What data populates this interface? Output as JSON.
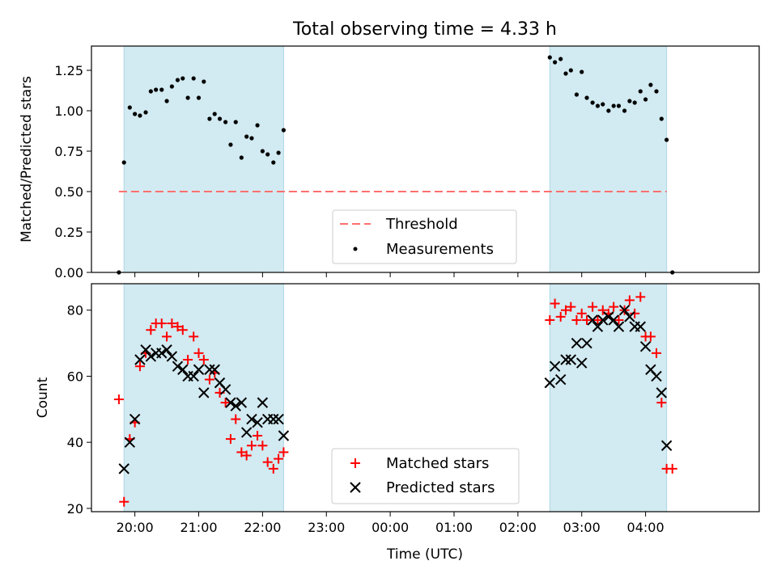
{
  "figure": {
    "title": "Total observing time = 4.33 h"
  },
  "chart_data": [
    {
      "type": "scatter",
      "title": "Total observing time = 4.33 h",
      "xlabel": "",
      "ylabel": "Matched/Predicted stars",
      "xlim": [
        -0.68,
        9.78
      ],
      "ylim": [
        0.0,
        1.4
      ],
      "yticks": [
        0.0,
        0.25,
        0.5,
        0.75,
        1.0,
        1.25
      ],
      "ytick_labels": [
        "0.00",
        "0.25",
        "0.50",
        "0.75",
        "1.00",
        "1.25"
      ],
      "xticks": [
        0,
        1,
        2,
        3,
        4,
        5,
        6,
        7,
        8
      ],
      "xtick_labels": [
        "",
        "",
        "",
        "",
        "",
        "",
        "",
        "",
        ""
      ],
      "shaded_intervals": [
        [
          -0.17,
          2.33
        ],
        [
          6.5,
          8.33
        ]
      ],
      "shade_color": "#add8e6",
      "threshold": {
        "name": "Threshold",
        "y": 0.5,
        "x": [
          -0.25,
          8.33
        ],
        "color": "#ff6f6f",
        "style": "dashed"
      },
      "legend": {
        "position": "lower center",
        "entries": [
          "Threshold",
          "Measurements"
        ]
      },
      "series": [
        {
          "name": "Measurements",
          "marker": "dot",
          "color": "#000000",
          "points": [
            [
              -0.25,
              0.0
            ],
            [
              -0.17,
              0.68
            ],
            [
              -0.08,
              1.02
            ],
            [
              0.0,
              0.98
            ],
            [
              0.08,
              0.97
            ],
            [
              0.17,
              0.99
            ],
            [
              0.25,
              1.12
            ],
            [
              0.33,
              1.13
            ],
            [
              0.42,
              1.13
            ],
            [
              0.5,
              1.06
            ],
            [
              0.58,
              1.15
            ],
            [
              0.67,
              1.19
            ],
            [
              0.75,
              1.2
            ],
            [
              0.83,
              1.08
            ],
            [
              0.92,
              1.2
            ],
            [
              1.0,
              1.08
            ],
            [
              1.08,
              1.18
            ],
            [
              1.17,
              0.95
            ],
            [
              1.25,
              0.98
            ],
            [
              1.33,
              0.95
            ],
            [
              1.42,
              0.93
            ],
            [
              1.5,
              0.79
            ],
            [
              1.58,
              0.93
            ],
            [
              1.67,
              0.71
            ],
            [
              1.75,
              0.84
            ],
            [
              1.83,
              0.83
            ],
            [
              1.92,
              0.91
            ],
            [
              2.0,
              0.75
            ],
            [
              2.08,
              0.73
            ],
            [
              2.17,
              0.68
            ],
            [
              2.25,
              0.74
            ],
            [
              2.33,
              0.88
            ],
            [
              6.5,
              1.33
            ],
            [
              6.58,
              1.3
            ],
            [
              6.67,
              1.32
            ],
            [
              6.75,
              1.23
            ],
            [
              6.83,
              1.25
            ],
            [
              6.92,
              1.1
            ],
            [
              7.0,
              1.24
            ],
            [
              7.08,
              1.08
            ],
            [
              7.17,
              1.05
            ],
            [
              7.25,
              1.03
            ],
            [
              7.33,
              1.04
            ],
            [
              7.42,
              1.0
            ],
            [
              7.5,
              1.03
            ],
            [
              7.58,
              1.03
            ],
            [
              7.67,
              1.0
            ],
            [
              7.75,
              1.06
            ],
            [
              7.83,
              1.05
            ],
            [
              7.92,
              1.12
            ],
            [
              8.0,
              1.07
            ],
            [
              8.08,
              1.16
            ],
            [
              8.17,
              1.12
            ],
            [
              8.25,
              0.95
            ],
            [
              8.33,
              0.82
            ],
            [
              8.42,
              0.0
            ]
          ]
        }
      ]
    },
    {
      "type": "scatter",
      "title": "",
      "xlabel": "Time (UTC)",
      "ylabel": "Count",
      "xlim": [
        -0.68,
        9.78
      ],
      "ylim": [
        19,
        88
      ],
      "yticks": [
        20,
        40,
        60,
        80
      ],
      "ytick_labels": [
        "20",
        "40",
        "60",
        "80"
      ],
      "xticks": [
        0,
        1,
        2,
        3,
        4,
        5,
        6,
        7,
        8
      ],
      "xtick_labels": [
        "20:00",
        "21:00",
        "22:00",
        "23:00",
        "00:00",
        "01:00",
        "02:00",
        "03:00",
        "04:00"
      ],
      "shaded_intervals": [
        [
          -0.17,
          2.33
        ],
        [
          6.5,
          8.33
        ]
      ],
      "shade_color": "#add8e6",
      "legend": {
        "position": "lower center",
        "entries": [
          "Matched stars",
          "Predicted stars"
        ]
      },
      "series": [
        {
          "name": "Matched stars",
          "marker": "plus",
          "color": "#ff0000",
          "points": [
            [
              -0.25,
              53
            ],
            [
              -0.17,
              22
            ],
            [
              -0.08,
              41
            ],
            [
              0.0,
              46
            ],
            [
              0.08,
              63
            ],
            [
              0.17,
              67
            ],
            [
              0.25,
              74
            ],
            [
              0.33,
              76
            ],
            [
              0.42,
              76
            ],
            [
              0.5,
              72
            ],
            [
              0.58,
              76
            ],
            [
              0.67,
              75
            ],
            [
              0.75,
              74
            ],
            [
              0.83,
              65
            ],
            [
              0.92,
              72
            ],
            [
              1.0,
              67
            ],
            [
              1.08,
              65
            ],
            [
              1.17,
              59
            ],
            [
              1.25,
              61
            ],
            [
              1.33,
              55
            ],
            [
              1.42,
              52
            ],
            [
              1.5,
              41
            ],
            [
              1.58,
              47
            ],
            [
              1.67,
              37
            ],
            [
              1.75,
              36
            ],
            [
              1.83,
              39
            ],
            [
              1.92,
              42
            ],
            [
              2.0,
              39
            ],
            [
              2.08,
              34
            ],
            [
              2.17,
              32
            ],
            [
              2.25,
              35
            ],
            [
              2.33,
              37
            ],
            [
              6.5,
              77
            ],
            [
              6.58,
              82
            ],
            [
              6.67,
              78
            ],
            [
              6.75,
              80
            ],
            [
              6.83,
              81
            ],
            [
              6.92,
              77
            ],
            [
              7.0,
              79
            ],
            [
              7.08,
              77
            ],
            [
              7.17,
              81
            ],
            [
              7.25,
              77
            ],
            [
              7.33,
              80
            ],
            [
              7.42,
              79
            ],
            [
              7.5,
              81
            ],
            [
              7.58,
              77
            ],
            [
              7.67,
              80
            ],
            [
              7.75,
              83
            ],
            [
              7.83,
              79
            ],
            [
              7.92,
              84
            ],
            [
              8.0,
              72
            ],
            [
              8.08,
              72
            ],
            [
              8.17,
              67
            ],
            [
              8.25,
              52
            ],
            [
              8.33,
              32
            ],
            [
              8.42,
              32
            ]
          ]
        },
        {
          "name": "Predicted stars",
          "marker": "x",
          "color": "#000000",
          "points": [
            [
              -0.17,
              32
            ],
            [
              -0.08,
              40
            ],
            [
              0.0,
              47
            ],
            [
              0.08,
              65
            ],
            [
              0.17,
              68
            ],
            [
              0.25,
              66
            ],
            [
              0.33,
              67
            ],
            [
              0.42,
              67
            ],
            [
              0.5,
              68
            ],
            [
              0.58,
              66
            ],
            [
              0.67,
              63
            ],
            [
              0.75,
              62
            ],
            [
              0.83,
              60
            ],
            [
              0.92,
              60
            ],
            [
              1.0,
              62
            ],
            [
              1.08,
              55
            ],
            [
              1.17,
              62
            ],
            [
              1.25,
              62
            ],
            [
              1.33,
              58
            ],
            [
              1.42,
              56
            ],
            [
              1.5,
              52
            ],
            [
              1.58,
              51
            ],
            [
              1.67,
              52
            ],
            [
              1.75,
              43
            ],
            [
              1.83,
              47
            ],
            [
              1.92,
              46
            ],
            [
              2.0,
              52
            ],
            [
              2.08,
              47
            ],
            [
              2.17,
              47
            ],
            [
              2.25,
              47
            ],
            [
              2.33,
              42
            ],
            [
              6.5,
              58
            ],
            [
              6.58,
              63
            ],
            [
              6.67,
              59
            ],
            [
              6.75,
              65
            ],
            [
              6.83,
              65
            ],
            [
              6.92,
              70
            ],
            [
              7.0,
              64
            ],
            [
              7.08,
              70
            ],
            [
              7.17,
              77
            ],
            [
              7.25,
              75
            ],
            [
              7.33,
              77
            ],
            [
              7.42,
              78
            ],
            [
              7.5,
              77
            ],
            [
              7.58,
              75
            ],
            [
              7.67,
              80
            ],
            [
              7.75,
              78
            ],
            [
              7.83,
              75
            ],
            [
              7.92,
              75
            ],
            [
              8.0,
              69
            ],
            [
              8.08,
              62
            ],
            [
              8.17,
              60
            ],
            [
              8.25,
              55
            ],
            [
              8.33,
              39
            ]
          ]
        }
      ]
    }
  ]
}
